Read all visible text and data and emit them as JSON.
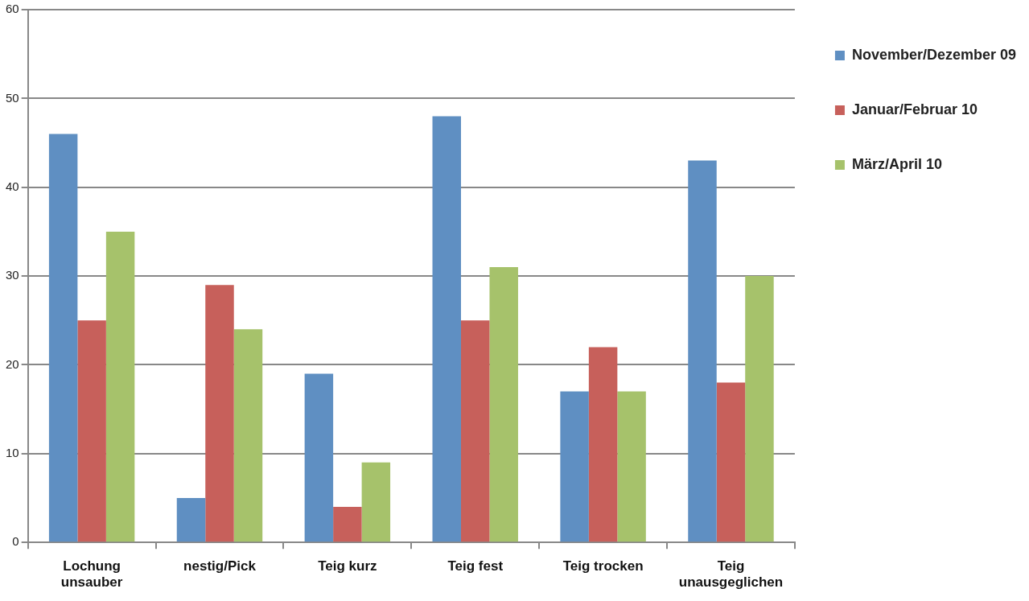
{
  "chart_data": {
    "type": "bar",
    "categories": [
      "Lochung unsauber",
      "nestig/Pick",
      "Teig kurz",
      "Teig fest",
      "Teig trocken",
      "Teig unausgeglichen"
    ],
    "series": [
      {
        "name": "November/Dezember 09",
        "color": "#5f8fc2",
        "values": [
          46,
          5,
          19,
          48,
          17,
          43
        ]
      },
      {
        "name": "Januar/Februar 10",
        "color": "#c7605b",
        "values": [
          25,
          29,
          4,
          25,
          22,
          18
        ]
      },
      {
        "name": "März/April 10",
        "color": "#a6c26b",
        "values": [
          35,
          24,
          9,
          31,
          17,
          30
        ]
      }
    ],
    "ylim": [
      0,
      60
    ],
    "yticks": [
      0,
      10,
      20,
      30,
      40,
      50,
      60
    ],
    "grid": "y",
    "legend": "right"
  }
}
